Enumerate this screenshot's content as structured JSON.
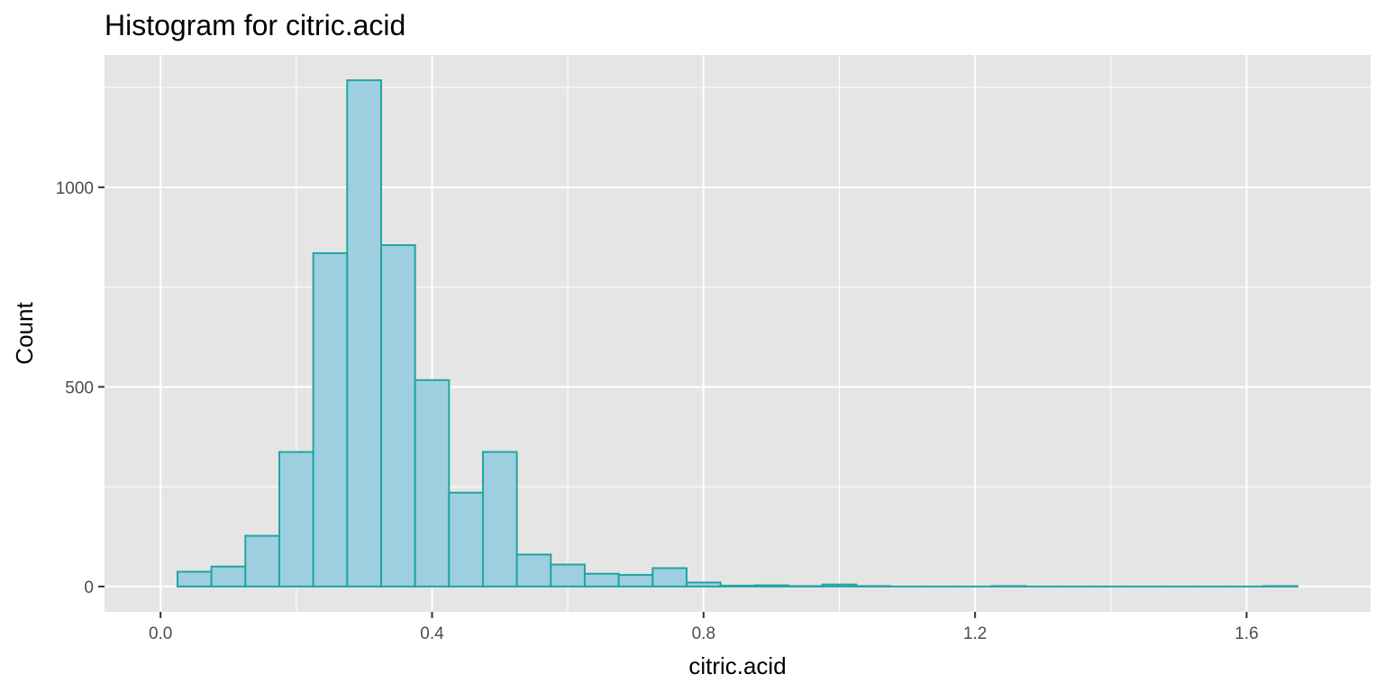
{
  "chart_data": {
    "type": "bar",
    "title": "Histogram for citric.acid",
    "xlabel": "citric.acid",
    "ylabel": "Count",
    "bin_width": 0.05,
    "bins": [
      {
        "x0": 0.025,
        "x1": 0.075,
        "count": 37
      },
      {
        "x0": 0.075,
        "x1": 0.125,
        "count": 50
      },
      {
        "x0": 0.125,
        "x1": 0.175,
        "count": 127
      },
      {
        "x0": 0.175,
        "x1": 0.225,
        "count": 337
      },
      {
        "x0": 0.225,
        "x1": 0.275,
        "count": 835
      },
      {
        "x0": 0.275,
        "x1": 0.325,
        "count": 1268
      },
      {
        "x0": 0.325,
        "x1": 0.375,
        "count": 855
      },
      {
        "x0": 0.375,
        "x1": 0.425,
        "count": 517
      },
      {
        "x0": 0.425,
        "x1": 0.475,
        "count": 235
      },
      {
        "x0": 0.475,
        "x1": 0.525,
        "count": 337
      },
      {
        "x0": 0.525,
        "x1": 0.575,
        "count": 80
      },
      {
        "x0": 0.575,
        "x1": 0.625,
        "count": 55
      },
      {
        "x0": 0.625,
        "x1": 0.675,
        "count": 32
      },
      {
        "x0": 0.675,
        "x1": 0.725,
        "count": 29
      },
      {
        "x0": 0.725,
        "x1": 0.775,
        "count": 46
      },
      {
        "x0": 0.775,
        "x1": 0.825,
        "count": 10
      },
      {
        "x0": 0.825,
        "x1": 0.875,
        "count": 2
      },
      {
        "x0": 0.875,
        "x1": 0.925,
        "count": 3
      },
      {
        "x0": 0.925,
        "x1": 0.975,
        "count": 1
      },
      {
        "x0": 0.975,
        "x1": 1.025,
        "count": 5
      },
      {
        "x0": 1.025,
        "x1": 1.075,
        "count": 1
      },
      {
        "x0": 1.075,
        "x1": 1.125,
        "count": 0
      },
      {
        "x0": 1.125,
        "x1": 1.175,
        "count": 0
      },
      {
        "x0": 1.175,
        "x1": 1.225,
        "count": 0
      },
      {
        "x0": 1.225,
        "x1": 1.275,
        "count": 1
      },
      {
        "x0": 1.275,
        "x1": 1.325,
        "count": 0
      },
      {
        "x0": 1.325,
        "x1": 1.375,
        "count": 0
      },
      {
        "x0": 1.375,
        "x1": 1.425,
        "count": 0
      },
      {
        "x0": 1.425,
        "x1": 1.475,
        "count": 0
      },
      {
        "x0": 1.475,
        "x1": 1.525,
        "count": 0
      },
      {
        "x0": 1.525,
        "x1": 1.575,
        "count": 0
      },
      {
        "x0": 1.575,
        "x1": 1.625,
        "count": 0
      },
      {
        "x0": 1.625,
        "x1": 1.675,
        "count": 1
      }
    ],
    "x_ticks": [
      {
        "value": 0.0,
        "label": "0.0"
      },
      {
        "value": 0.4,
        "label": "0.4"
      },
      {
        "value": 0.8,
        "label": "0.8"
      },
      {
        "value": 1.2,
        "label": "1.2"
      },
      {
        "value": 1.6,
        "label": "1.6"
      }
    ],
    "y_ticks": [
      {
        "value": 0,
        "label": "0"
      },
      {
        "value": 500,
        "label": "500"
      },
      {
        "value": 1000,
        "label": "1000"
      }
    ],
    "xlim": [
      -0.0825,
      1.7825
    ],
    "ylim": [
      -63.4,
      1331.4
    ],
    "grid": true,
    "colors": {
      "bar_fill": "#9ecfe0",
      "bar_stroke": "#21a59f",
      "panel_background": "#e5e5e5",
      "grid_line": "#ffffff"
    }
  }
}
